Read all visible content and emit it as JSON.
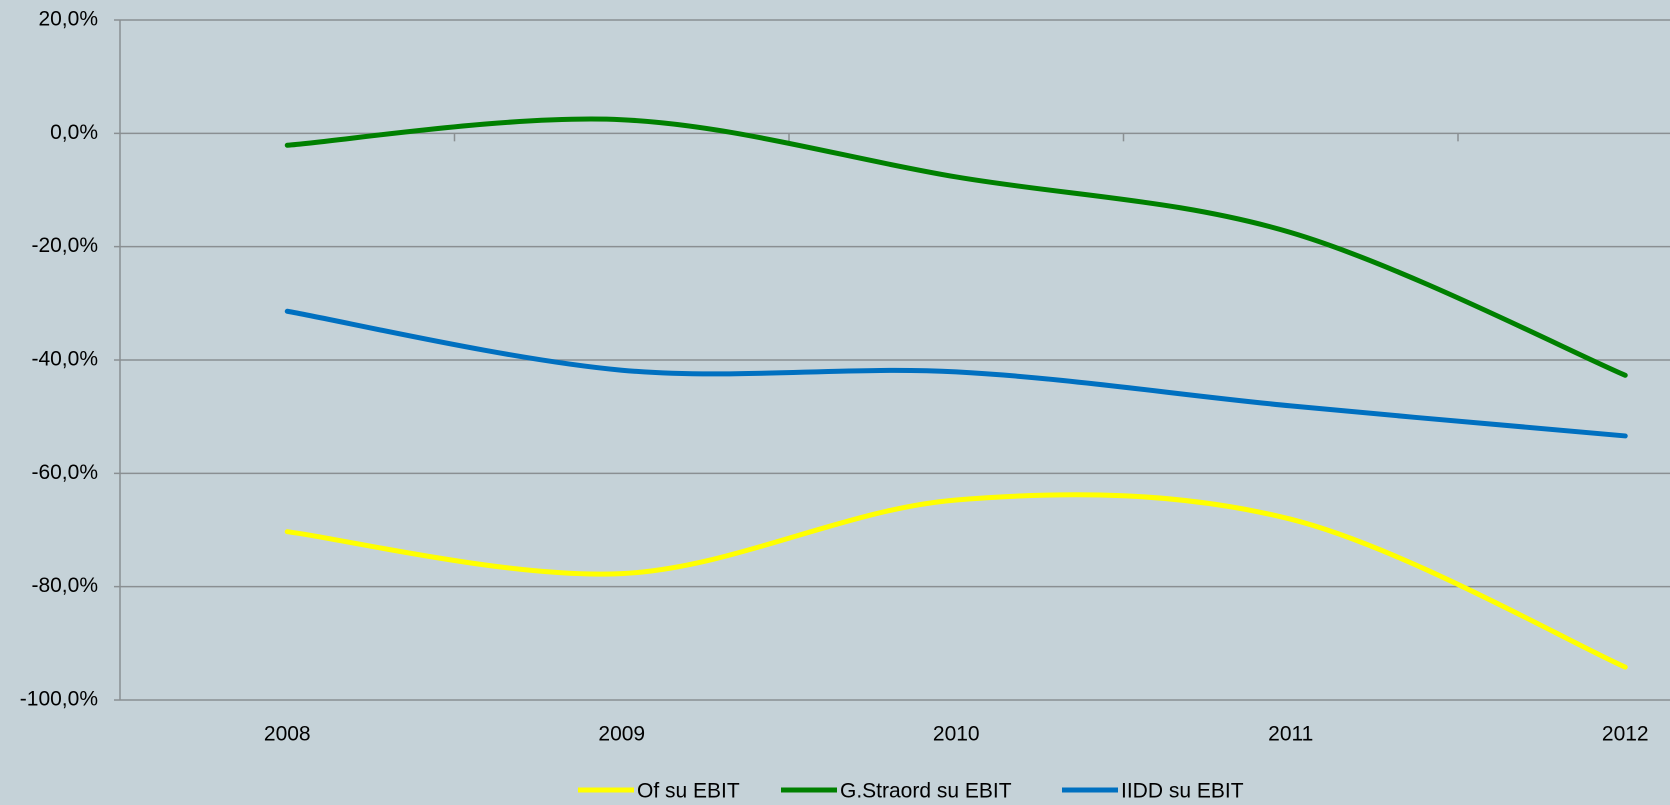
{
  "chart_data": {
    "type": "line",
    "categories": [
      "2008",
      "2009",
      "2010",
      "2011",
      "2012"
    ],
    "series": [
      {
        "name": "Of su EBIT",
        "color": "#ffff00",
        "values": [
          -70.3,
          -77.7,
          -64.7,
          -68.1,
          -94.2
        ]
      },
      {
        "name": "G.Straord su EBIT",
        "color": "#008000",
        "values": [
          -2.1,
          2.4,
          -7.7,
          -17.5,
          -42.7
        ]
      },
      {
        "name": "IIDD su EBIT",
        "color": "#0070c0",
        "values": [
          -31.4,
          -41.8,
          -42.1,
          -48.1,
          -53.4
        ]
      }
    ],
    "ylim": [
      -100,
      20
    ],
    "yticks": [
      {
        "value": -100,
        "label": "-100,0%"
      },
      {
        "value": -80,
        "label": "-80,0%"
      },
      {
        "value": -60,
        "label": "-60,0%"
      },
      {
        "value": -40,
        "label": "-40,0%"
      },
      {
        "value": -20,
        "label": "-20,0%"
      },
      {
        "value": 0,
        "label": "0,0%"
      },
      {
        "value": 20,
        "label": "20,0%"
      }
    ],
    "grid": true,
    "smooth": true,
    "legend": "bottom"
  }
}
